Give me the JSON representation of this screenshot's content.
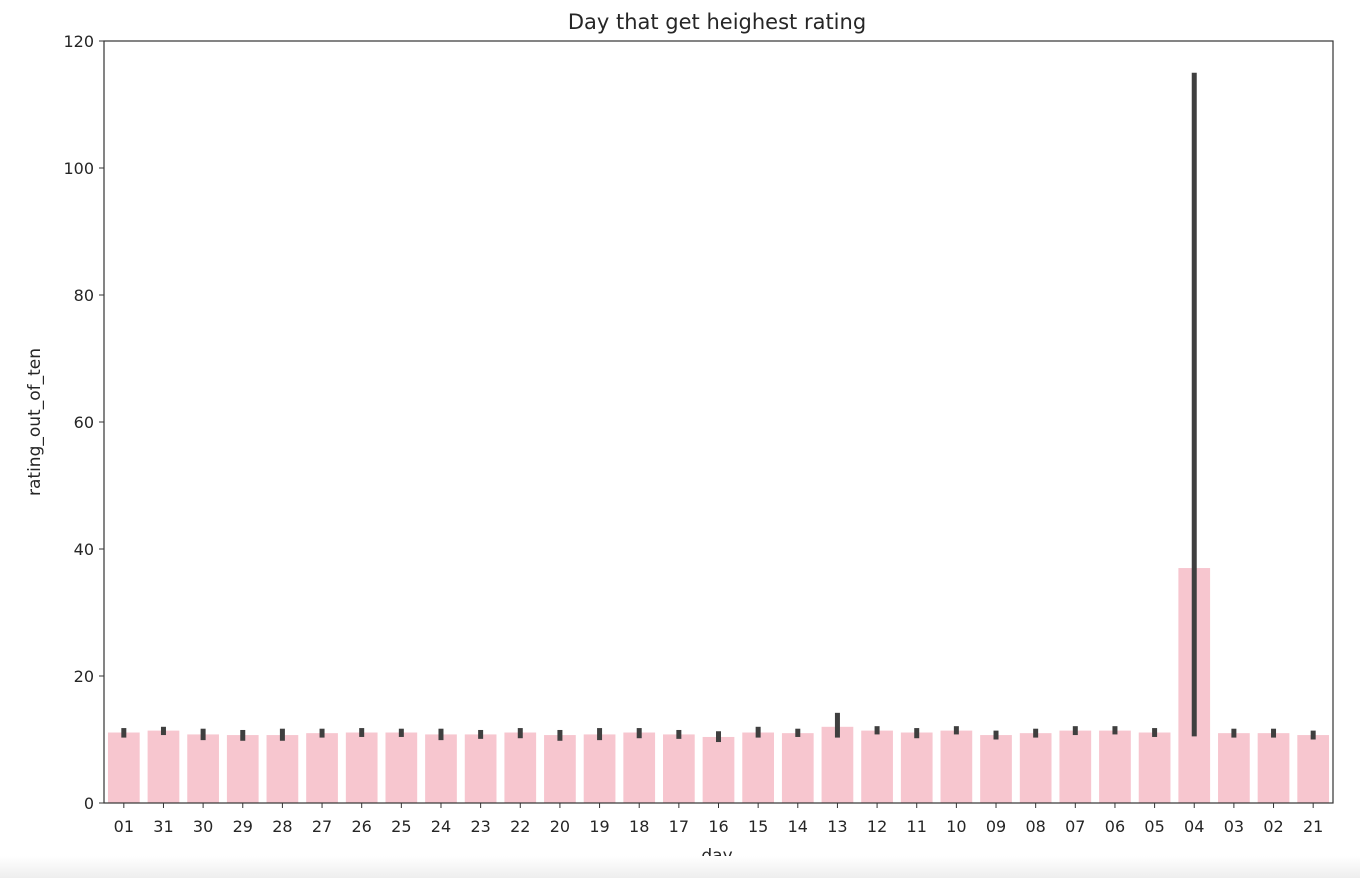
{
  "chart_data": {
    "type": "bar",
    "title": "Day that get heighest rating",
    "xlabel": "day",
    "ylabel": "rating_out_of_ten",
    "ylim": [
      0,
      120
    ],
    "yticks": [
      0,
      20,
      40,
      60,
      80,
      100,
      120
    ],
    "grid": false,
    "bar_color": "#f7c6cf",
    "errorbar_color": "#3f3f3f",
    "categories": [
      "01",
      "31",
      "30",
      "29",
      "28",
      "27",
      "26",
      "25",
      "24",
      "23",
      "22",
      "20",
      "19",
      "18",
      "17",
      "16",
      "15",
      "14",
      "13",
      "12",
      "11",
      "10",
      "09",
      "08",
      "07",
      "06",
      "05",
      "04",
      "03",
      "02",
      "21"
    ],
    "values": [
      11.1,
      11.4,
      10.8,
      10.7,
      10.7,
      11.0,
      11.1,
      11.1,
      10.8,
      10.8,
      11.1,
      10.7,
      10.8,
      11.1,
      10.8,
      10.4,
      11.1,
      11.0,
      12.0,
      11.4,
      11.1,
      11.4,
      10.7,
      11.0,
      11.4,
      11.4,
      11.1,
      37.0,
      11.0,
      11.0,
      10.7
    ],
    "error_low": [
      10.3,
      10.7,
      9.9,
      9.8,
      9.8,
      10.3,
      10.4,
      10.4,
      9.9,
      10.1,
      10.2,
      9.8,
      9.9,
      10.2,
      10.1,
      9.6,
      10.3,
      10.4,
      10.3,
      10.8,
      10.2,
      10.8,
      10.0,
      10.3,
      10.7,
      10.8,
      10.4,
      10.5,
      10.3,
      10.3,
      10.0
    ],
    "error_high": [
      11.8,
      12.0,
      11.7,
      11.5,
      11.7,
      11.7,
      11.8,
      11.7,
      11.7,
      11.5,
      11.8,
      11.5,
      11.8,
      11.8,
      11.5,
      11.3,
      12.0,
      11.7,
      14.2,
      12.1,
      11.8,
      12.1,
      11.4,
      11.7,
      12.1,
      12.1,
      11.8,
      115.0,
      11.7,
      11.7,
      11.4
    ]
  }
}
